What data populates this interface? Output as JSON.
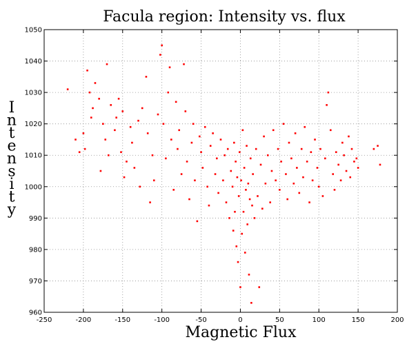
{
  "chart_data": {
    "type": "scatter",
    "title": "Facula region: Intensity vs. flux",
    "xlabel": "Magnetic Flux",
    "ylabel": "Intensity",
    "xlim": [
      -250,
      200
    ],
    "ylim": [
      960,
      1050
    ],
    "xticks": [
      -250,
      -200,
      -150,
      -100,
      -50,
      0,
      50,
      100,
      150,
      200
    ],
    "yticks": [
      960,
      970,
      980,
      990,
      1000,
      1010,
      1020,
      1030,
      1040,
      1050
    ],
    "grid": true,
    "marker_color": "#ff0000",
    "series": [
      {
        "points": [
          [
            -220,
            1031
          ],
          [
            -210,
            1015
          ],
          [
            -205,
            1011
          ],
          [
            -200,
            1017
          ],
          [
            -198,
            1012
          ],
          [
            -195,
            1037
          ],
          [
            -192,
            1030
          ],
          [
            -190,
            1022
          ],
          [
            -188,
            1025
          ],
          [
            -185,
            1033
          ],
          [
            -180,
            1028
          ],
          [
            -178,
            1005
          ],
          [
            -175,
            1020
          ],
          [
            -172,
            1015
          ],
          [
            -170,
            1039
          ],
          [
            -168,
            1010
          ],
          [
            -165,
            1026
          ],
          [
            -160,
            1018
          ],
          [
            -158,
            1022
          ],
          [
            -155,
            1028
          ],
          [
            -152,
            1011
          ],
          [
            -150,
            1024
          ],
          [
            -148,
            1003
          ],
          [
            -145,
            1008
          ],
          [
            -140,
            1019
          ],
          [
            -138,
            1014
          ],
          [
            -135,
            1006
          ],
          [
            -130,
            1021
          ],
          [
            -128,
            1000
          ],
          [
            -125,
            1025
          ],
          [
            -120,
            1035
          ],
          [
            -118,
            1017
          ],
          [
            -115,
            995
          ],
          [
            -112,
            1010
          ],
          [
            -110,
            1002
          ],
          [
            -105,
            1023
          ],
          [
            -102,
            1042
          ],
          [
            -100,
            1045
          ],
          [
            -98,
            1020
          ],
          [
            -95,
            1009
          ],
          [
            -92,
            1030
          ],
          [
            -90,
            1038
          ],
          [
            -88,
            1015
          ],
          [
            -85,
            999
          ],
          [
            -82,
            1027
          ],
          [
            -80,
            1012
          ],
          [
            -78,
            1018
          ],
          [
            -75,
            1004
          ],
          [
            -72,
            1039
          ],
          [
            -70,
            1024
          ],
          [
            -68,
            1008
          ],
          [
            -65,
            996
          ],
          [
            -62,
            1014
          ],
          [
            -60,
            1020
          ],
          [
            -58,
            1002
          ],
          [
            -55,
            989
          ],
          [
            -52,
            1016
          ],
          [
            -50,
            1011
          ],
          [
            -48,
            1006
          ],
          [
            -45,
            1019
          ],
          [
            -42,
            1000
          ],
          [
            -40,
            994
          ],
          [
            -38,
            1013
          ],
          [
            -35,
            1017
          ],
          [
            -32,
            1004
          ],
          [
            -30,
            1009
          ],
          [
            -28,
            998
          ],
          [
            -25,
            1015
          ],
          [
            -22,
            1002
          ],
          [
            -20,
            1010
          ],
          [
            -18,
            995
          ],
          [
            -16,
            1012
          ],
          [
            -14,
            990
          ],
          [
            -12,
            1005
          ],
          [
            -10,
            1000
          ],
          [
            -9,
            986
          ],
          [
            -8,
            1014
          ],
          [
            -7,
            992
          ],
          [
            -6,
            1008
          ],
          [
            -5,
            981
          ],
          [
            -4,
            1003
          ],
          [
            -3,
            976
          ],
          [
            -2,
            997
          ],
          [
            -1,
            1011
          ],
          [
            0,
            968
          ],
          [
            1,
            1002
          ],
          [
            2,
            985
          ],
          [
            3,
            1018
          ],
          [
            4,
            992
          ],
          [
            5,
            1006
          ],
          [
            6,
            979
          ],
          [
            7,
            999
          ],
          [
            8,
            1013
          ],
          [
            9,
            988
          ],
          [
            10,
            1001
          ],
          [
            11,
            972
          ],
          [
            12,
            996
          ],
          [
            13,
            1009
          ],
          [
            14,
            963
          ],
          [
            15,
            994
          ],
          [
            16,
            1004
          ],
          [
            18,
            990
          ],
          [
            20,
            1012
          ],
          [
            22,
            997
          ],
          [
            24,
            968
          ],
          [
            26,
            1007
          ],
          [
            28,
            993
          ],
          [
            30,
            1016
          ],
          [
            32,
            1001
          ],
          [
            35,
            1010
          ],
          [
            38,
            995
          ],
          [
            40,
            1005
          ],
          [
            42,
            1018
          ],
          [
            45,
            1002
          ],
          [
            48,
            1012
          ],
          [
            50,
            999
          ],
          [
            52,
            1008
          ],
          [
            55,
            1020
          ],
          [
            58,
            1004
          ],
          [
            60,
            996
          ],
          [
            62,
            1014
          ],
          [
            65,
            1009
          ],
          [
            68,
            1001
          ],
          [
            70,
            1017
          ],
          [
            72,
            1006
          ],
          [
            75,
            998
          ],
          [
            78,
            1012
          ],
          [
            80,
            1003
          ],
          [
            82,
            1019
          ],
          [
            85,
            1008
          ],
          [
            88,
            995
          ],
          [
            90,
            1011
          ],
          [
            92,
            1002
          ],
          [
            95,
            1015
          ],
          [
            98,
            1006
          ],
          [
            100,
            1000
          ],
          [
            102,
            1012
          ],
          [
            105,
            997
          ],
          [
            108,
            1009
          ],
          [
            110,
            1026
          ],
          [
            112,
            1030
          ],
          [
            115,
            1018
          ],
          [
            118,
            1004
          ],
          [
            120,
            999
          ],
          [
            122,
            1011
          ],
          [
            125,
            1007
          ],
          [
            128,
            1002
          ],
          [
            130,
            1014
          ],
          [
            132,
            1010
          ],
          [
            135,
            1005
          ],
          [
            138,
            1016
          ],
          [
            140,
            1003
          ],
          [
            142,
            1012
          ],
          [
            145,
            1008
          ],
          [
            148,
            1009
          ],
          [
            150,
            1006
          ],
          [
            170,
            1012
          ],
          [
            175,
            1013
          ],
          [
            178,
            1007
          ]
        ]
      }
    ]
  }
}
